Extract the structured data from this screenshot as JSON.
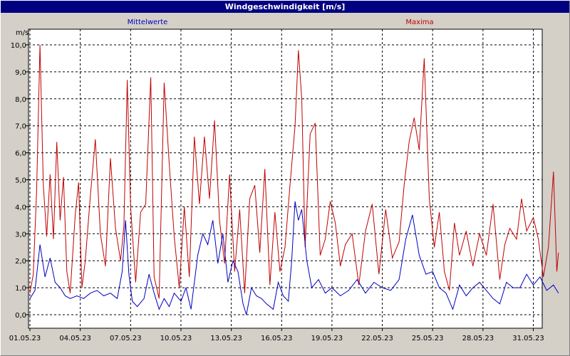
{
  "window": {
    "title": "Windgeschwindigkeit [m/s]"
  },
  "chart_data": {
    "type": "line",
    "title": "Windgeschwindigkeit [m/s]",
    "ylabel": "m/s",
    "ylim": [
      -0.5,
      10.5
    ],
    "yticks": [
      "0,0",
      "1,0",
      "2,0",
      "3,0",
      "4,0",
      "5,0",
      "6,0",
      "7,0",
      "8,0",
      "9,0",
      "10,0"
    ],
    "xlim_days": [
      0,
      31.5
    ],
    "xticks": [
      "01.05.23",
      "04.05.23",
      "07.05.23",
      "10.05.23",
      "13.05.23",
      "16.05.23",
      "19.05.23",
      "22.05.23",
      "25.05.23",
      "28.05.23",
      "31.05.23"
    ],
    "grid": true,
    "legend_position": "top",
    "series": [
      {
        "name": "Mittelwerte",
        "color": "#0000c0",
        "points": [
          [
            0,
            0.6
          ],
          [
            0.3,
            0.9
          ],
          [
            0.6,
            2.6
          ],
          [
            0.9,
            1.4
          ],
          [
            1.2,
            2.1
          ],
          [
            1.5,
            1.2
          ],
          [
            1.8,
            1.0
          ],
          [
            2.1,
            0.7
          ],
          [
            2.4,
            0.6
          ],
          [
            2.8,
            0.7
          ],
          [
            3.2,
            0.6
          ],
          [
            3.6,
            0.8
          ],
          [
            4.0,
            0.9
          ],
          [
            4.4,
            0.7
          ],
          [
            4.8,
            0.8
          ],
          [
            5.2,
            0.6
          ],
          [
            5.5,
            1.6
          ],
          [
            5.7,
            3.5
          ],
          [
            5.9,
            1.5
          ],
          [
            6.1,
            0.5
          ],
          [
            6.4,
            0.3
          ],
          [
            6.8,
            0.6
          ],
          [
            7.1,
            1.5
          ],
          [
            7.4,
            0.8
          ],
          [
            7.7,
            0.2
          ],
          [
            8.0,
            0.6
          ],
          [
            8.3,
            0.3
          ],
          [
            8.6,
            0.8
          ],
          [
            9.0,
            0.5
          ],
          [
            9.3,
            1.0
          ],
          [
            9.6,
            0.2
          ],
          [
            10.0,
            2.2
          ],
          [
            10.3,
            3.0
          ],
          [
            10.6,
            2.6
          ],
          [
            10.9,
            3.5
          ],
          [
            11.2,
            1.9
          ],
          [
            11.5,
            3.0
          ],
          [
            11.8,
            1.2
          ],
          [
            12.1,
            2.0
          ],
          [
            12.4,
            1.6
          ],
          [
            12.7,
            0.4
          ],
          [
            12.9,
            0.0
          ],
          [
            13.2,
            1.0
          ],
          [
            13.5,
            0.7
          ],
          [
            13.8,
            0.6
          ],
          [
            14.1,
            0.4
          ],
          [
            14.5,
            0.2
          ],
          [
            14.8,
            1.2
          ],
          [
            15.1,
            0.7
          ],
          [
            15.4,
            0.5
          ],
          [
            15.6,
            2.0
          ],
          [
            15.8,
            4.2
          ],
          [
            16.0,
            3.5
          ],
          [
            16.2,
            3.9
          ],
          [
            16.5,
            2.0
          ],
          [
            16.8,
            1.0
          ],
          [
            17.2,
            1.3
          ],
          [
            17.6,
            0.8
          ],
          [
            18.0,
            1.0
          ],
          [
            18.5,
            0.7
          ],
          [
            19.0,
            0.9
          ],
          [
            19.5,
            1.3
          ],
          [
            20.0,
            0.8
          ],
          [
            20.5,
            1.2
          ],
          [
            21.0,
            1.0
          ],
          [
            21.5,
            0.9
          ],
          [
            22.0,
            1.3
          ],
          [
            22.4,
            2.8
          ],
          [
            22.8,
            3.7
          ],
          [
            23.2,
            2.2
          ],
          [
            23.6,
            1.5
          ],
          [
            24.0,
            1.6
          ],
          [
            24.4,
            1.0
          ],
          [
            24.8,
            0.8
          ],
          [
            25.2,
            0.2
          ],
          [
            25.6,
            1.1
          ],
          [
            26.0,
            0.7
          ],
          [
            26.4,
            1.0
          ],
          [
            26.8,
            1.2
          ],
          [
            27.2,
            0.9
          ],
          [
            27.6,
            0.6
          ],
          [
            28.0,
            0.4
          ],
          [
            28.4,
            1.2
          ],
          [
            28.8,
            1.0
          ],
          [
            29.2,
            1.0
          ],
          [
            29.6,
            1.5
          ],
          [
            30.0,
            1.1
          ],
          [
            30.4,
            1.4
          ],
          [
            30.8,
            0.9
          ],
          [
            31.2,
            1.1
          ],
          [
            31.5,
            0.8
          ]
        ]
      },
      {
        "name": "Maxima",
        "color": "#c00000",
        "points": [
          [
            0,
            0.8
          ],
          [
            0.2,
            1.5
          ],
          [
            0.4,
            4.6
          ],
          [
            0.6,
            10.0
          ],
          [
            0.8,
            4.8
          ],
          [
            1.0,
            2.9
          ],
          [
            1.2,
            5.2
          ],
          [
            1.4,
            2.8
          ],
          [
            1.6,
            6.4
          ],
          [
            1.8,
            3.5
          ],
          [
            2.0,
            5.1
          ],
          [
            2.2,
            1.6
          ],
          [
            2.4,
            0.8
          ],
          [
            2.7,
            3.7
          ],
          [
            2.9,
            4.9
          ],
          [
            3.1,
            1.0
          ],
          [
            3.3,
            2.0
          ],
          [
            3.6,
            4.4
          ],
          [
            3.9,
            6.5
          ],
          [
            4.2,
            3.0
          ],
          [
            4.5,
            1.8
          ],
          [
            4.8,
            5.8
          ],
          [
            5.1,
            3.2
          ],
          [
            5.4,
            2.0
          ],
          [
            5.6,
            3.3
          ],
          [
            5.8,
            8.7
          ],
          [
            6.0,
            4.0
          ],
          [
            6.3,
            1.2
          ],
          [
            6.6,
            3.8
          ],
          [
            6.9,
            4.1
          ],
          [
            7.2,
            8.8
          ],
          [
            7.4,
            1.4
          ],
          [
            7.7,
            0.6
          ],
          [
            8.0,
            8.6
          ],
          [
            8.3,
            5.6
          ],
          [
            8.6,
            2.9
          ],
          [
            8.9,
            1.0
          ],
          [
            9.2,
            4.0
          ],
          [
            9.5,
            1.4
          ],
          [
            9.8,
            6.6
          ],
          [
            10.1,
            4.1
          ],
          [
            10.4,
            6.6
          ],
          [
            10.7,
            4.3
          ],
          [
            11.0,
            7.2
          ],
          [
            11.3,
            3.5
          ],
          [
            11.6,
            1.9
          ],
          [
            11.9,
            5.2
          ],
          [
            12.2,
            1.6
          ],
          [
            12.5,
            3.9
          ],
          [
            12.8,
            0.8
          ],
          [
            13.1,
            4.3
          ],
          [
            13.4,
            4.8
          ],
          [
            13.7,
            2.3
          ],
          [
            14.0,
            5.4
          ],
          [
            14.3,
            1.1
          ],
          [
            14.6,
            3.8
          ],
          [
            14.9,
            1.6
          ],
          [
            15.2,
            2.5
          ],
          [
            15.5,
            4.8
          ],
          [
            15.8,
            7.0
          ],
          [
            16.0,
            9.8
          ],
          [
            16.2,
            8.0
          ],
          [
            16.4,
            2.5
          ],
          [
            16.7,
            6.7
          ],
          [
            17.0,
            7.1
          ],
          [
            17.3,
            2.2
          ],
          [
            17.6,
            2.8
          ],
          [
            17.9,
            4.2
          ],
          [
            18.2,
            3.4
          ],
          [
            18.5,
            1.8
          ],
          [
            18.8,
            2.6
          ],
          [
            19.2,
            3.0
          ],
          [
            19.6,
            1.1
          ],
          [
            20.0,
            3.1
          ],
          [
            20.4,
            4.1
          ],
          [
            20.8,
            1.5
          ],
          [
            21.2,
            3.9
          ],
          [
            21.6,
            2.1
          ],
          [
            22.0,
            2.7
          ],
          [
            22.3,
            4.8
          ],
          [
            22.6,
            6.4
          ],
          [
            22.9,
            7.3
          ],
          [
            23.2,
            6.1
          ],
          [
            23.5,
            9.5
          ],
          [
            23.8,
            4.3
          ],
          [
            24.1,
            2.5
          ],
          [
            24.4,
            3.8
          ],
          [
            24.7,
            1.6
          ],
          [
            25.0,
            0.9
          ],
          [
            25.3,
            3.4
          ],
          [
            25.6,
            2.2
          ],
          [
            26.0,
            3.1
          ],
          [
            26.4,
            1.8
          ],
          [
            26.8,
            3.0
          ],
          [
            27.2,
            2.2
          ],
          [
            27.6,
            4.1
          ],
          [
            28.0,
            1.3
          ],
          [
            28.3,
            2.6
          ],
          [
            28.6,
            3.2
          ],
          [
            29.0,
            2.8
          ],
          [
            29.3,
            4.3
          ],
          [
            29.6,
            3.1
          ],
          [
            30.0,
            3.6
          ],
          [
            30.3,
            2.8
          ],
          [
            30.6,
            1.4
          ],
          [
            30.9,
            2.5
          ],
          [
            31.2,
            5.3
          ],
          [
            31.4,
            1.6
          ],
          [
            31.5,
            2.3
          ]
        ]
      }
    ]
  }
}
